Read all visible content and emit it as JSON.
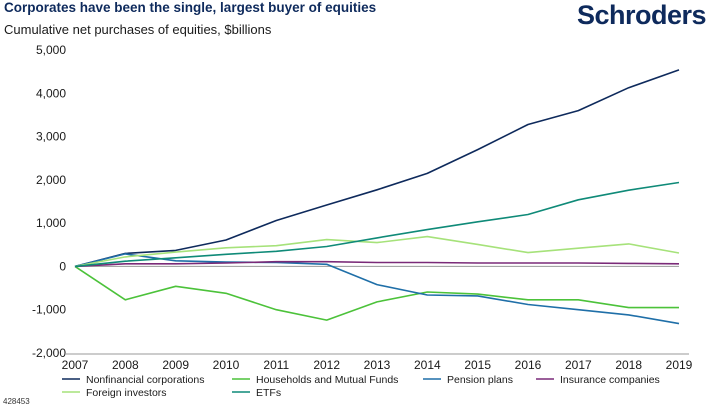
{
  "header": {
    "title": "Corporates have been the single, largest buyer of equities",
    "subtitle": "Cumulative net purchases of equities, $billions",
    "logo_text": "Schroders"
  },
  "footnote": "428453",
  "colors": {
    "brand": "#0e2a5c",
    "axis": "#999999"
  },
  "chart_data": {
    "type": "line",
    "title": "Corporates have been the single, largest buyer of equities",
    "ylabel": "Cumulative net purchases of equities, $billions",
    "xlabel": "",
    "x": [
      2007,
      2008,
      2009,
      2010,
      2011,
      2012,
      2013,
      2014,
      2015,
      2016,
      2017,
      2018,
      2019
    ],
    "ylim": [
      -2000,
      5000
    ],
    "yticks": [
      -2000,
      -1000,
      0,
      1000,
      2000,
      3000,
      4000,
      5000
    ],
    "ytick_labels": [
      "-2,000",
      "-1,000",
      "0",
      "1,000",
      "2,000",
      "3,000",
      "4,000",
      "5,000"
    ],
    "grid": false,
    "legend_position": "bottom",
    "series": [
      {
        "name": "Nonfinancial corporations",
        "color": "#0e2a5c",
        "values": [
          0,
          300,
          370,
          610,
          1060,
          1420,
          1770,
          2150,
          2700,
          3280,
          3600,
          4130,
          4540
        ]
      },
      {
        "name": "Households and Mutual Funds",
        "color": "#4cc23a",
        "values": [
          0,
          -770,
          -460,
          -620,
          -1000,
          -1240,
          -820,
          -590,
          -640,
          -770,
          -770,
          -950,
          -950
        ]
      },
      {
        "name": "Pension plans",
        "color": "#1f6fa8",
        "values": [
          0,
          290,
          130,
          100,
          90,
          50,
          -420,
          -660,
          -680,
          -880,
          -1000,
          -1120,
          -1320
        ]
      },
      {
        "name": "Insurance companies",
        "color": "#7a2a78",
        "values": [
          0,
          60,
          60,
          80,
          110,
          110,
          90,
          90,
          80,
          80,
          80,
          70,
          60
        ]
      },
      {
        "name": "Foreign investors",
        "color": "#a6e27a",
        "values": [
          0,
          220,
          330,
          430,
          480,
          620,
          550,
          690,
          510,
          320,
          420,
          520,
          310
        ]
      },
      {
        "name": "ETFs",
        "color": "#0f8a78",
        "values": [
          0,
          120,
          200,
          280,
          350,
          460,
          660,
          850,
          1030,
          1200,
          1540,
          1760,
          1940
        ]
      }
    ]
  }
}
